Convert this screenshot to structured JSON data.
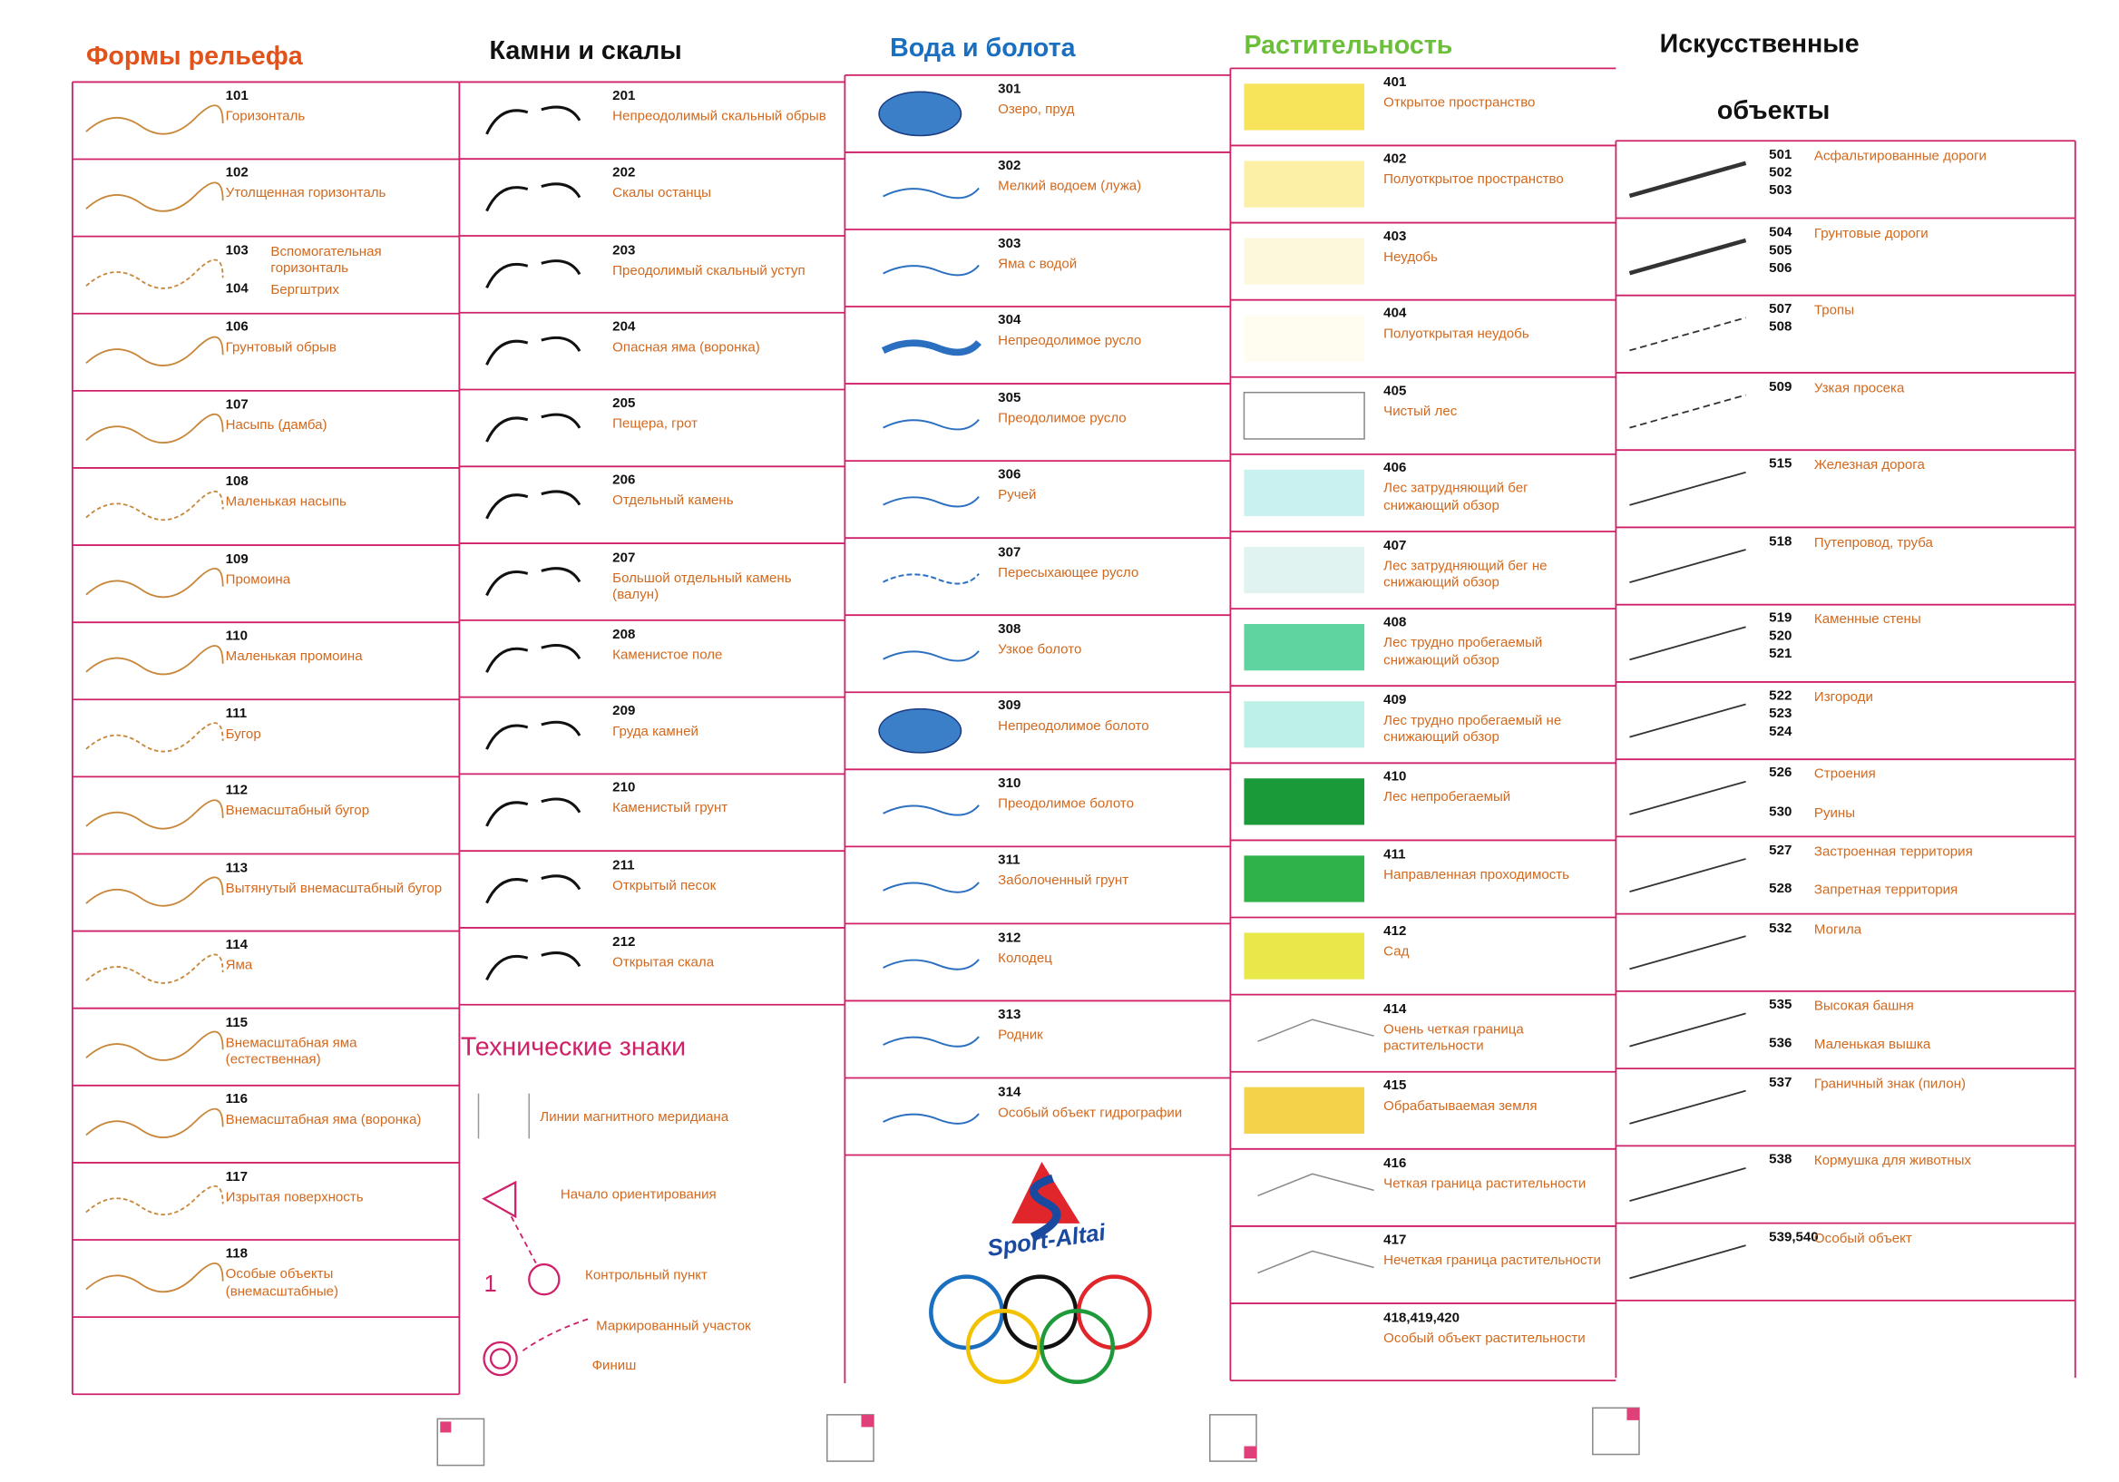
{
  "columns": [
    {
      "title": [
        "Формы рельефа"
      ],
      "rows": [
        {
          "entries": [
            {
              "codes": [
                "101"
              ],
              "label": "Горизонталь"
            }
          ]
        },
        {
          "entries": [
            {
              "codes": [
                "102"
              ],
              "label": "Утолщенная горизонталь"
            }
          ]
        },
        {
          "entries": [
            {
              "codes": [
                "103"
              ],
              "label": "Вспомогательная горизонталь"
            },
            {
              "codes": [
                "104"
              ],
              "label": "Бергштрих"
            }
          ]
        },
        {
          "entries": [
            {
              "codes": [
                "106"
              ],
              "label": "Грунтовый обрыв"
            }
          ]
        },
        {
          "entries": [
            {
              "codes": [
                "107"
              ],
              "label": "Насыпь (дамба)"
            }
          ]
        },
        {
          "entries": [
            {
              "codes": [
                "108"
              ],
              "label": "Маленькая насыпь"
            }
          ]
        },
        {
          "entries": [
            {
              "codes": [
                "109"
              ],
              "label": "Промоина"
            }
          ]
        },
        {
          "entries": [
            {
              "codes": [
                "110"
              ],
              "label": "Маленькая промоина"
            }
          ]
        },
        {
          "entries": [
            {
              "codes": [
                "111"
              ],
              "label": "Бугор"
            }
          ]
        },
        {
          "entries": [
            {
              "codes": [
                "112"
              ],
              "label": "Внемасштабный бугор"
            }
          ]
        },
        {
          "entries": [
            {
              "codes": [
                "113"
              ],
              "label": "Вытянутый внемасштабный бугор"
            }
          ]
        },
        {
          "entries": [
            {
              "codes": [
                "114"
              ],
              "label": "Яма"
            }
          ]
        },
        {
          "entries": [
            {
              "codes": [
                "115"
              ],
              "label": "Внемасштабная яма (естественная)"
            }
          ]
        },
        {
          "entries": [
            {
              "codes": [
                "116"
              ],
              "label": "Внемасштабная яма (воронка)"
            }
          ]
        },
        {
          "entries": [
            {
              "codes": [
                "117"
              ],
              "label": "Изрытая поверхность"
            }
          ]
        },
        {
          "entries": [
            {
              "codes": [
                "118"
              ],
              "label": "Особые объекты (внемасштабные)"
            }
          ]
        }
      ]
    },
    {
      "title": [
        "Камни и скалы"
      ],
      "rows": [
        {
          "entries": [
            {
              "codes": [
                "201"
              ],
              "label": "Непреодолимый скальный обрыв"
            }
          ]
        },
        {
          "entries": [
            {
              "codes": [
                "202"
              ],
              "label": "Скалы останцы"
            }
          ]
        },
        {
          "entries": [
            {
              "codes": [
                "203"
              ],
              "label": "Преодолимый скальный уступ"
            }
          ]
        },
        {
          "entries": [
            {
              "codes": [
                "204"
              ],
              "label": "Опасная яма (воронка)"
            }
          ]
        },
        {
          "entries": [
            {
              "codes": [
                "205"
              ],
              "label": "Пещера, грот"
            }
          ]
        },
        {
          "entries": [
            {
              "codes": [
                "206"
              ],
              "label": "Отдельный камень"
            }
          ]
        },
        {
          "entries": [
            {
              "codes": [
                "207"
              ],
              "label": "Большой отдельный камень (валун)"
            }
          ]
        },
        {
          "entries": [
            {
              "codes": [
                "208"
              ],
              "label": "Каменистое поле"
            }
          ]
        },
        {
          "entries": [
            {
              "codes": [
                "209"
              ],
              "label": "Груда камней"
            }
          ]
        },
        {
          "entries": [
            {
              "codes": [
                "210"
              ],
              "label": "Каменистый грунт"
            }
          ]
        },
        {
          "entries": [
            {
              "codes": [
                "211"
              ],
              "label": "Открытый песок"
            }
          ]
        },
        {
          "entries": [
            {
              "codes": [
                "212"
              ],
              "label": "Открытая скала"
            }
          ]
        }
      ]
    },
    {
      "title": [
        "Вода и болота"
      ],
      "rows": [
        {
          "entries": [
            {
              "codes": [
                "301"
              ],
              "label": "Озеро, пруд"
            }
          ]
        },
        {
          "entries": [
            {
              "codes": [
                "302"
              ],
              "label": "Мелкий водоем (лужа)"
            }
          ]
        },
        {
          "entries": [
            {
              "codes": [
                "303"
              ],
              "label": "Яма с водой"
            }
          ]
        },
        {
          "entries": [
            {
              "codes": [
                "304"
              ],
              "label": "Непреодолимое русло"
            }
          ]
        },
        {
          "entries": [
            {
              "codes": [
                "305"
              ],
              "label": "Преодолимое русло"
            }
          ]
        },
        {
          "entries": [
            {
              "codes": [
                "306"
              ],
              "label": "Ручей"
            }
          ]
        },
        {
          "entries": [
            {
              "codes": [
                "307"
              ],
              "label": "Пересыхающее русло"
            }
          ]
        },
        {
          "entries": [
            {
              "codes": [
                "308"
              ],
              "label": "Узкое болото"
            }
          ]
        },
        {
          "entries": [
            {
              "codes": [
                "309"
              ],
              "label": "Непреодолимое болото"
            }
          ]
        },
        {
          "entries": [
            {
              "codes": [
                "310"
              ],
              "label": "Преодолимое болото"
            }
          ]
        },
        {
          "entries": [
            {
              "codes": [
                "311"
              ],
              "label": "Заболоченный грунт"
            }
          ]
        },
        {
          "entries": [
            {
              "codes": [
                "312"
              ],
              "label": "Колодец"
            }
          ]
        },
        {
          "entries": [
            {
              "codes": [
                "313"
              ],
              "label": "Родник"
            }
          ]
        },
        {
          "entries": [
            {
              "codes": [
                "314"
              ],
              "label": "Особый объект гидрографии"
            }
          ]
        }
      ]
    },
    {
      "title": [
        "Растительность"
      ],
      "rows": [
        {
          "entries": [
            {
              "codes": [
                "401"
              ],
              "label": "Открытое пространство"
            }
          ]
        },
        {
          "entries": [
            {
              "codes": [
                "402"
              ],
              "label": "Полуоткрытое пространство"
            }
          ]
        },
        {
          "entries": [
            {
              "codes": [
                "403"
              ],
              "label": "Неудобь"
            }
          ]
        },
        {
          "entries": [
            {
              "codes": [
                "404"
              ],
              "label": "Полуоткрытая неудобь"
            }
          ]
        },
        {
          "entries": [
            {
              "codes": [
                "405"
              ],
              "label": "Чистый лес"
            }
          ]
        },
        {
          "entries": [
            {
              "codes": [
                "406"
              ],
              "label": "Лес затрудняющий бег снижающий обзор"
            }
          ]
        },
        {
          "entries": [
            {
              "codes": [
                "407"
              ],
              "label": "Лес затрудняющий бег не снижающий обзор"
            }
          ]
        },
        {
          "entries": [
            {
              "codes": [
                "408"
              ],
              "label": "Лес трудно пробегаемый снижающий обзор"
            }
          ]
        },
        {
          "entries": [
            {
              "codes": [
                "409"
              ],
              "label": "Лес трудно пробегаемый не снижающий обзор"
            }
          ]
        },
        {
          "entries": [
            {
              "codes": [
                "410"
              ],
              "label": "Лес непробегаемый"
            }
          ]
        },
        {
          "entries": [
            {
              "codes": [
                "411"
              ],
              "label": "Направленная проходимость"
            }
          ]
        },
        {
          "entries": [
            {
              "codes": [
                "412"
              ],
              "label": "Сад"
            }
          ]
        },
        {
          "entries": [
            {
              "codes": [
                "414"
              ],
              "label": "Очень четкая граница растительности"
            }
          ]
        },
        {
          "entries": [
            {
              "codes": [
                "415"
              ],
              "label": "Обрабатываемая земля"
            }
          ]
        },
        {
          "entries": [
            {
              "codes": [
                "416"
              ],
              "label": "Четкая граница растительности"
            }
          ]
        },
        {
          "entries": [
            {
              "codes": [
                "417"
              ],
              "label": "Нечеткая граница растительности"
            }
          ]
        },
        {
          "entries": [
            {
              "codes": [
                "418,419,420"
              ],
              "label": "Особый объект растительности"
            }
          ]
        }
      ]
    },
    {
      "title": [
        "Искусственные",
        "объекты"
      ],
      "rows": [
        {
          "entries": [
            {
              "codes": [
                "501",
                "502",
                "503"
              ],
              "label": "Асфальтированные дороги"
            }
          ]
        },
        {
          "entries": [
            {
              "codes": [
                "504",
                "505",
                "506"
              ],
              "label": "Грунтовые дороги"
            }
          ]
        },
        {
          "entries": [
            {
              "codes": [
                "507",
                "508"
              ],
              "label": "Тропы"
            }
          ]
        },
        {
          "entries": [
            {
              "codes": [
                "509"
              ],
              "label": "Узкая просека"
            }
          ]
        },
        {
          "entries": [
            {
              "codes": [
                "515"
              ],
              "label": "Железная дорога"
            }
          ]
        },
        {
          "entries": [
            {
              "codes": [
                "518"
              ],
              "label": "Путепровод, труба"
            }
          ]
        },
        {
          "entries": [
            {
              "codes": [
                "519",
                "520",
                "521"
              ],
              "label": "Каменные стены"
            }
          ]
        },
        {
          "entries": [
            {
              "codes": [
                "522",
                "523",
                "524"
              ],
              "label": "Изгороди"
            }
          ]
        },
        {
          "entries": [
            {
              "codes": [
                "526"
              ],
              "label": "Строения"
            },
            {
              "codes": [
                "530"
              ],
              "label": "Руины"
            }
          ]
        },
        {
          "entries": [
            {
              "codes": [
                "527"
              ],
              "label": "Застроенная территория"
            },
            {
              "codes": [
                "528"
              ],
              "label": "Запретная территория"
            }
          ]
        },
        {
          "entries": [
            {
              "codes": [
                "532"
              ],
              "label": "Могила"
            }
          ]
        },
        {
          "entries": [
            {
              "codes": [
                "535"
              ],
              "label": "Высокая башня"
            },
            {
              "codes": [
                "536"
              ],
              "label": "Маленькая вышка"
            }
          ]
        },
        {
          "entries": [
            {
              "codes": [
                "537"
              ],
              "label": "Граничный знак (пилон)"
            }
          ]
        },
        {
          "entries": [
            {
              "codes": [
                "538"
              ],
              "label": "Кормушка для животных"
            }
          ]
        },
        {
          "entries": [
            {
              "codes": [
                "539,540"
              ],
              "label": "Особый объект"
            }
          ]
        }
      ]
    }
  ],
  "technical": {
    "title": "Технические знаки",
    "items": [
      {
        "label": "Линии магнитного меридиана"
      },
      {
        "label": "Начало ориентирования"
      },
      {
        "code": "1",
        "label": "Контрольный пункт"
      },
      {
        "label": "Маркированный участок"
      },
      {
        "label": "Финиш"
      }
    ]
  },
  "logo": {
    "text": "Sport-Altai"
  }
}
